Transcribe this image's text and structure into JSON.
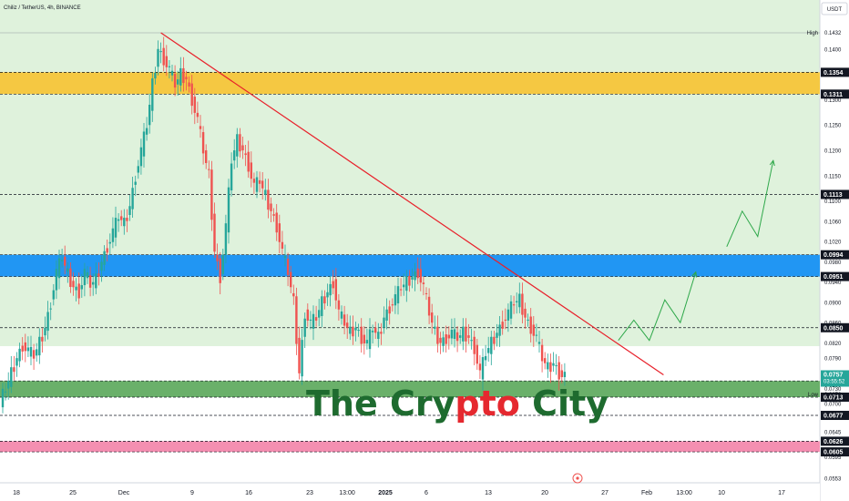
{
  "header": {
    "title": "Chiliz / TetherUS, 4h, BINANCE",
    "currency": "USDT"
  },
  "watermark": {
    "part1": "The Cry",
    "part2": "pto",
    "part3": " City",
    "color_main": "#1e6b2f",
    "color_accent": "#e5282f"
  },
  "colors": {
    "background": "#dff2dc",
    "up_candle": "#26a69a",
    "down_candle": "#ef5350",
    "trendline": "#e8202a",
    "projection": "#2ea84a",
    "zone_yellow": "#f5c842",
    "zone_blue": "#2196f3",
    "zone_green": "#6ab06a",
    "zone_pink": "#f48fb1"
  },
  "price_axis": {
    "ticks": [
      "0.1400",
      "0.1350",
      "0.1300",
      "0.1250",
      "0.1200",
      "0.1150",
      "0.1100",
      "0.1060",
      "0.1020",
      "0.0980",
      "0.0940",
      "0.0900",
      "0.0860",
      "0.0820",
      "0.0790",
      "0.0760",
      "0.0730",
      "0.0700",
      "0.0676",
      "0.0645",
      "0.0595",
      "0.0553"
    ],
    "high_label": "High",
    "high_value": "0.1432",
    "low_label": "Low",
    "low_value": "0.0676"
  },
  "level_tags": [
    {
      "value": "0.1354",
      "style": "dark"
    },
    {
      "value": "0.1311",
      "style": "dark"
    },
    {
      "value": "0.1113",
      "style": "dark"
    },
    {
      "value": "0.0994",
      "style": "dark"
    },
    {
      "value": "0.0951",
      "style": "dark"
    },
    {
      "value": "0.0850",
      "style": "dark"
    },
    {
      "value": "0.0745",
      "style": "dark"
    },
    {
      "value": "0.0713",
      "style": "dark"
    },
    {
      "value": "0.0677",
      "style": "dark"
    },
    {
      "value": "0.0626",
      "style": "dark"
    },
    {
      "value": "0.0605",
      "style": "dark"
    }
  ],
  "current_price": {
    "value": "0.0757",
    "countdown": "03:55:52",
    "color": "#26a69a"
  },
  "time_axis": {
    "labels": [
      "18",
      "25",
      "Dec",
      "9",
      "16",
      "23",
      "13:00",
      "2025",
      "6",
      "13",
      "20",
      "27",
      "Feb",
      "13:00",
      "10",
      "17"
    ],
    "bold": [
      "2025"
    ]
  },
  "chart_data": {
    "type": "candlestick",
    "symbol": "CHZ/USDT",
    "interval": "4h",
    "ylim": [
      0.0553,
      0.1432
    ],
    "zones": [
      {
        "name": "resistance-yellow",
        "from": 0.1311,
        "to": 0.1354
      },
      {
        "name": "resistance-blue",
        "from": 0.0951,
        "to": 0.0994
      },
      {
        "name": "support-green",
        "from": 0.0713,
        "to": 0.0745
      },
      {
        "name": "support-pink",
        "from": 0.0605,
        "to": 0.0626
      }
    ],
    "levels": [
      0.1113,
      0.085,
      0.0677
    ],
    "price_path": [
      0.0705,
      0.073,
      0.076,
      0.079,
      0.0815,
      0.0805,
      0.0795,
      0.082,
      0.085,
      0.09,
      0.096,
      0.099,
      0.0955,
      0.093,
      0.092,
      0.096,
      0.0935,
      0.0945,
      0.098,
      0.101,
      0.104,
      0.107,
      0.1055,
      0.109,
      0.115,
      0.12,
      0.125,
      0.133,
      0.14,
      0.138,
      0.136,
      0.133,
      0.135,
      0.134,
      0.13,
      0.126,
      0.12,
      0.115,
      0.1,
      0.095,
      0.105,
      0.118,
      0.122,
      0.12,
      0.117,
      0.113,
      0.114,
      0.111,
      0.108,
      0.105,
      0.1,
      0.096,
      0.09,
      0.076,
      0.088,
      0.086,
      0.087,
      0.09,
      0.092,
      0.094,
      0.088,
      0.086,
      0.084,
      0.085,
      0.083,
      0.082,
      0.085,
      0.083,
      0.087,
      0.089,
      0.091,
      0.093,
      0.094,
      0.095,
      0.096,
      0.093,
      0.088,
      0.084,
      0.082,
      0.083,
      0.084,
      0.083,
      0.084,
      0.083,
      0.081,
      0.076,
      0.08,
      0.082,
      0.084,
      0.086,
      0.088,
      0.09,
      0.0905,
      0.087,
      0.085,
      0.083,
      0.079,
      0.077,
      0.078,
      0.076,
      0.0757
    ],
    "trendline": {
      "from": {
        "index": 28,
        "price": 0.1432
      },
      "to": {
        "index": 117,
        "price": 0.0757
      }
    },
    "projection": [
      0.0825,
      0.0865,
      0.0825,
      0.0905,
      0.086,
      0.096,
      null,
      0.101,
      0.108,
      0.103,
      0.118
    ]
  }
}
